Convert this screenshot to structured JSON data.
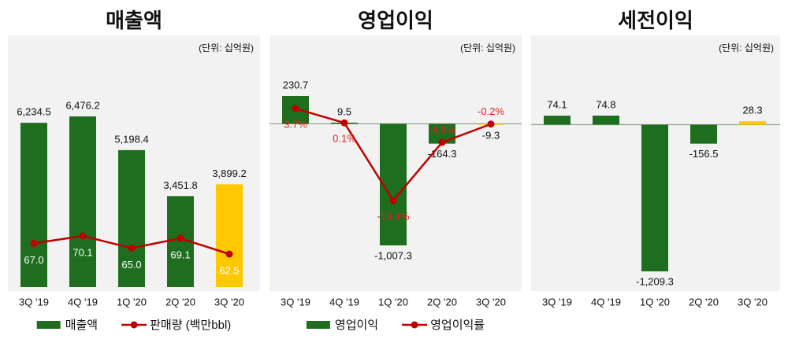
{
  "chart_data": [
    {
      "type": "bar",
      "title": "매출액",
      "unit_note": "(단위: 십억원)",
      "categories": [
        "3Q '19",
        "4Q '19",
        "1Q '20",
        "2Q '20",
        "3Q '20"
      ],
      "series": [
        {
          "name": "매출액",
          "type": "bar",
          "color": "#1f6e1f",
          "colors": [
            "#1f6e1f",
            "#1f6e1f",
            "#1f6e1f",
            "#1f6e1f",
            "#ffc800"
          ],
          "values": [
            6234.5,
            6476.2,
            5198.4,
            3451.8,
            3899.2
          ],
          "value_labels": [
            "6,234.5",
            "6,476.2",
            "5,198.4",
            "3,451.8",
            "3,899.2"
          ]
        },
        {
          "name": "판매량 (백만bbl)",
          "type": "line",
          "axis": "y2",
          "color": "#c00000",
          "values": [
            67.0,
            70.1,
            65.0,
            69.1,
            62.5
          ],
          "value_labels": [
            "67.0",
            "70.1",
            "65.0",
            "69.1",
            "62.5"
          ]
        }
      ]
    },
    {
      "type": "bar",
      "title": "영업이익",
      "unit_note": "(단위: 십억원)",
      "categories": [
        "3Q '19",
        "4Q '19",
        "1Q '20",
        "2Q '20",
        "3Q '20"
      ],
      "series": [
        {
          "name": "영업이익",
          "type": "bar",
          "color": "#1f6e1f",
          "colors": [
            "#1f6e1f",
            "#1f6e1f",
            "#1f6e1f",
            "#1f6e1f",
            "#ffc800"
          ],
          "values": [
            230.7,
            9.5,
            -1007.3,
            -164.3,
            -9.3
          ],
          "value_labels": [
            "230.7",
            "9.5",
            "-1,007.3",
            "-164.3",
            "-9.3"
          ]
        },
        {
          "name": "영업이익률",
          "type": "line",
          "axis": "y2",
          "color": "#c00000",
          "values": [
            3.7,
            0.1,
            -19.4,
            -4.8,
            -0.2
          ],
          "value_labels": [
            "3.7%",
            "0.1%",
            "-19.4%",
            "-4.8%",
            "-0.2%"
          ]
        }
      ]
    },
    {
      "type": "bar",
      "title": "세전이익",
      "unit_note": "(단위: 십억원)",
      "categories": [
        "3Q '19",
        "4Q '19",
        "1Q '20",
        "2Q '20",
        "3Q '20"
      ],
      "series": [
        {
          "type": "bar",
          "color": "#1f6e1f",
          "colors": [
            "#1f6e1f",
            "#1f6e1f",
            "#1f6e1f",
            "#1f6e1f",
            "#ffc800"
          ],
          "values": [
            74.1,
            74.8,
            -1209.3,
            -156.5,
            28.3
          ],
          "value_labels": [
            "74.1",
            "74.8",
            "-1,209.3",
            "-156.5",
            "28.3"
          ]
        }
      ]
    }
  ]
}
